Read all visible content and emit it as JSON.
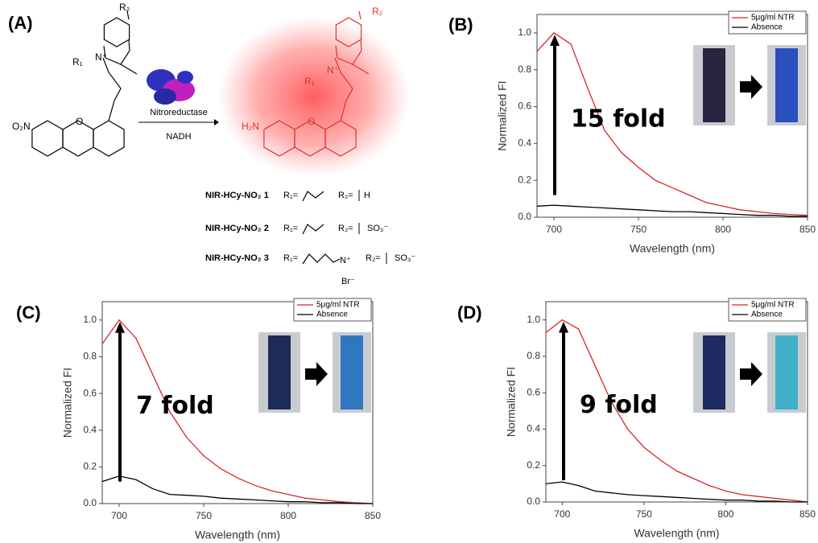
{
  "panel_a": {
    "label": "(A)",
    "enzyme": "Nitroreductase",
    "cofactor": "NADH",
    "reactant": {
      "nitro": "O₂N",
      "oxygen": "O",
      "nitrogen": "N⁺",
      "r1": "R₁",
      "r2": "R₂"
    },
    "product": {
      "amine": "H₂N",
      "oxygen": "O",
      "nitrogen": "N⁺",
      "r1": "R₁",
      "r2": "R₂"
    },
    "compounds": [
      {
        "name": "NIR-HCy-NO₂ 1",
        "r1": "R₁=",
        "r2": "R₂=",
        "r2_group": "H"
      },
      {
        "name": "NIR-HCy-NO₂ 2",
        "r1": "R₁=",
        "r2": "R₂=",
        "r2_group": "SO₃⁻"
      },
      {
        "name": "NIR-HCy-NO₂ 3",
        "r1": "R₁=",
        "r2": "R₂=",
        "r2_group": "SO₃⁻",
        "nitrogen": "N⁺",
        "counterion": "Br⁻"
      }
    ]
  },
  "chart_data": [
    {
      "type": "line",
      "panel": "(B)",
      "x_label": "Wavelength (nm)",
      "y_label": "Normalized FI",
      "annotation": "15 fold",
      "x": [
        690,
        700,
        710,
        720,
        730,
        740,
        750,
        760,
        770,
        780,
        790,
        800,
        810,
        820,
        830,
        840,
        850
      ],
      "series": [
        {
          "name": "5μg/ml NTR",
          "color": "#d62728",
          "values": [
            0.9,
            1.0,
            0.94,
            0.7,
            0.47,
            0.35,
            0.27,
            0.2,
            0.16,
            0.12,
            0.08,
            0.06,
            0.04,
            0.03,
            0.02,
            0.015,
            0.01
          ]
        },
        {
          "name": "Absence",
          "color": "#000000",
          "values": [
            0.06,
            0.065,
            0.06,
            0.055,
            0.05,
            0.045,
            0.04,
            0.035,
            0.03,
            0.03,
            0.025,
            0.02,
            0.015,
            0.01,
            0.01,
            0.005,
            0.005
          ]
        }
      ],
      "xlim": [
        690,
        850
      ],
      "xticks": [
        700,
        750,
        800,
        850
      ],
      "ylim": [
        0,
        1.1
      ],
      "yticks": [
        {
          "value": 0,
          "label": "0.0"
        },
        0.2,
        0.4,
        0.6,
        0.8,
        {
          "value": 1,
          "label": "1.0"
        }
      ]
    },
    {
      "type": "line",
      "panel": "(C)",
      "x_label": "Wavelength (nm)",
      "y_label": "Normalized FI",
      "annotation": "7 fold",
      "x": [
        690,
        700,
        710,
        720,
        730,
        740,
        750,
        760,
        770,
        780,
        790,
        800,
        810,
        820,
        830,
        840,
        850
      ],
      "series": [
        {
          "name": "5μg/ml NTR",
          "color": "#d62728",
          "values": [
            0.87,
            1.0,
            0.9,
            0.7,
            0.5,
            0.36,
            0.26,
            0.19,
            0.14,
            0.1,
            0.07,
            0.05,
            0.03,
            0.02,
            0.01,
            0.005,
            0
          ]
        },
        {
          "name": "Absence",
          "color": "#000000",
          "values": [
            0.12,
            0.15,
            0.13,
            0.08,
            0.05,
            0.045,
            0.04,
            0.03,
            0.025,
            0.02,
            0.015,
            0.01,
            0.01,
            0.005,
            0.005,
            0,
            0
          ]
        }
      ],
      "xlim": [
        690,
        850
      ],
      "xticks": [
        700,
        750,
        800,
        850
      ],
      "ylim": [
        0,
        1.1
      ],
      "yticks": [
        {
          "value": 0,
          "label": "0.0"
        },
        0.2,
        0.4,
        0.6,
        0.8,
        {
          "value": 1,
          "label": "1.0"
        }
      ]
    },
    {
      "type": "line",
      "panel": "(D)",
      "x_label": "Wavelength (nm)",
      "y_label": "Normalized FI",
      "annotation": "9 fold",
      "x": [
        690,
        700,
        710,
        720,
        730,
        740,
        750,
        760,
        770,
        780,
        790,
        800,
        810,
        820,
        830,
        840,
        850
      ],
      "series": [
        {
          "name": "5μg/ml NTR",
          "color": "#d62728",
          "values": [
            0.93,
            1.0,
            0.95,
            0.75,
            0.55,
            0.4,
            0.3,
            0.23,
            0.17,
            0.13,
            0.09,
            0.06,
            0.04,
            0.03,
            0.02,
            0.01,
            0
          ]
        },
        {
          "name": "Absence",
          "color": "#000000",
          "values": [
            0.1,
            0.11,
            0.09,
            0.06,
            0.05,
            0.04,
            0.035,
            0.03,
            0.025,
            0.02,
            0.015,
            0.01,
            0.01,
            0.005,
            0.005,
            0,
            0
          ]
        }
      ],
      "xlim": [
        690,
        850
      ],
      "xticks": [
        700,
        750,
        800,
        850
      ],
      "ylim": [
        0,
        1.1
      ],
      "yticks": [
        {
          "value": 0,
          "label": "0.0"
        },
        0.2,
        0.4,
        0.6,
        0.8,
        {
          "value": 1,
          "label": "1.0"
        }
      ]
    }
  ]
}
